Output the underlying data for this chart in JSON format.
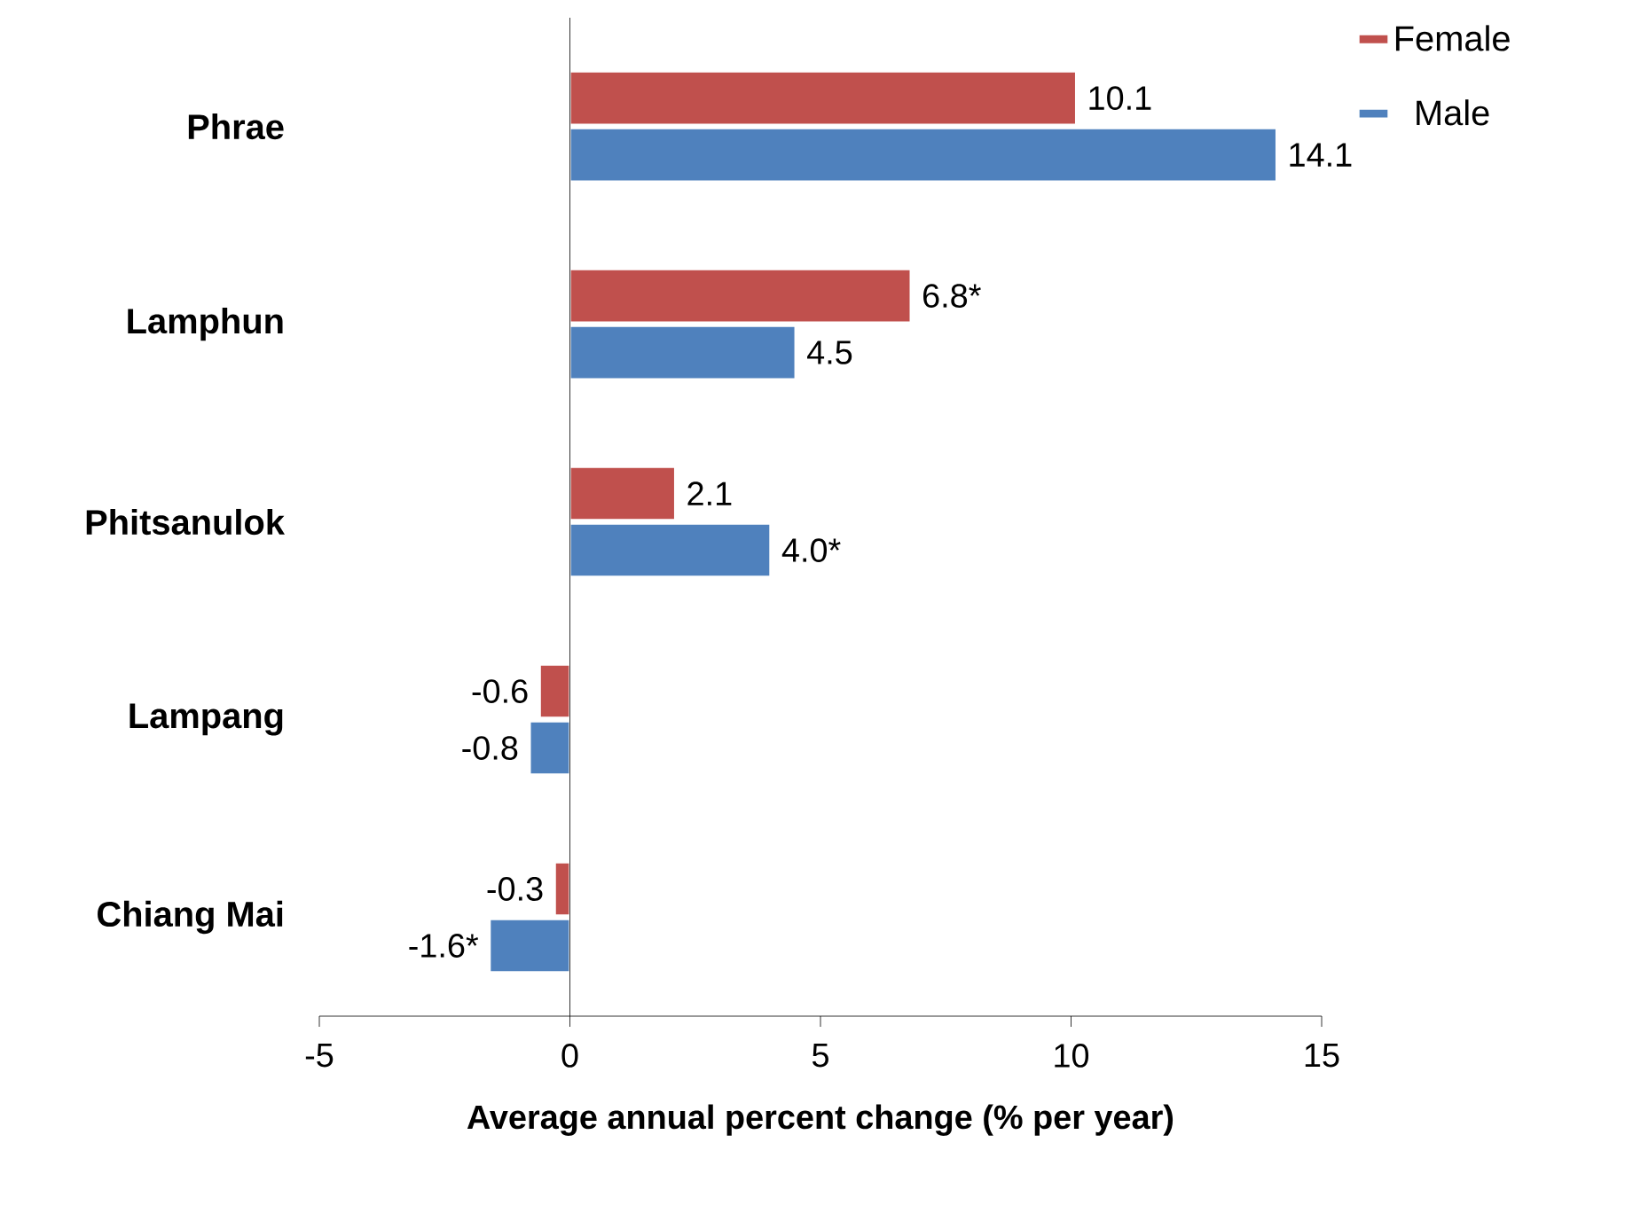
{
  "chart_data": {
    "type": "bar",
    "orientation": "horizontal",
    "categories": [
      "Phrae",
      "Lamphun",
      "Phitsanulok",
      "Lampang",
      "Chiang Mai"
    ],
    "series": [
      {
        "name": "Female",
        "color": "#c0504d",
        "values": [
          10.1,
          6.8,
          2.1,
          -0.6,
          -0.3
        ],
        "value_labels": [
          "10.1",
          "6.8*",
          "2.1",
          "-0.6",
          "-0.3"
        ]
      },
      {
        "name": "Male",
        "color": "#4f81bd",
        "values": [
          14.1,
          4.5,
          4.0,
          -0.8,
          -1.6
        ],
        "value_labels": [
          "14.1",
          "4.5",
          "4.0*",
          "-0.8",
          "-1.6*"
        ]
      }
    ],
    "xlim": [
      -5,
      15
    ],
    "xticks": [
      -5,
      0,
      5,
      10,
      15
    ],
    "xlabel": "Average annual percent change (% per year)",
    "legend": "top right"
  }
}
